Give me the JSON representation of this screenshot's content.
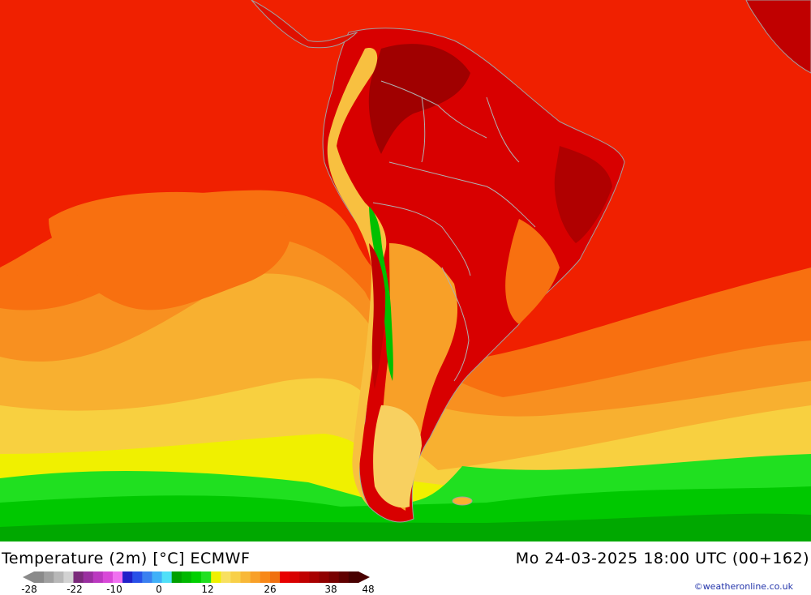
{
  "map": {
    "product": "Temperature (2m) [°C]",
    "model": "ECMWF",
    "valid_time": "Mo 24-03-2025 18:00 UTC (00+162)",
    "title_left": "Temperature (2m) [°C] ECMWF",
    "region": "South America"
  },
  "legend": {
    "tick_labels": [
      "-28",
      "-22",
      "-10",
      "0",
      "12",
      "26",
      "38",
      "48"
    ],
    "colors": [
      "#8a8a8a",
      "#a0a0a0",
      "#b8b8b8",
      "#d2d2d2",
      "#7a2a7a",
      "#9a2fa0",
      "#bb38c0",
      "#d848d8",
      "#f070f0",
      "#2020c8",
      "#2850e8",
      "#3a80f0",
      "#40b0f8",
      "#50e0f8",
      "#00a000",
      "#00b800",
      "#00d000",
      "#20e020",
      "#f0f000",
      "#f8e060",
      "#f8d048",
      "#f8b838",
      "#f8a028",
      "#f88818",
      "#f07010",
      "#e80000",
      "#d80000",
      "#c00000",
      "#a80000",
      "#900000",
      "#780000",
      "#600000",
      "#480000"
    ]
  },
  "credit": "©weatheronline.co.uk"
}
